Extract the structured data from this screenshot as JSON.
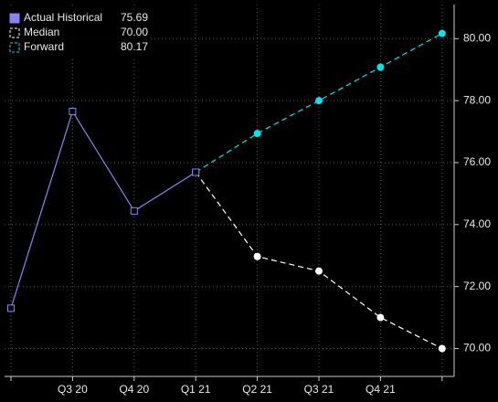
{
  "chart_data": {
    "type": "line",
    "categories": [
      null,
      "Q3 20",
      "Q4 20",
      "Q1 21",
      "Q2 21",
      "Q3 21",
      "Q4 21",
      null
    ],
    "series": [
      {
        "name": "Actual Historical",
        "legend_value": "75.69",
        "color": "#8585f5",
        "dash": false,
        "marker": "square",
        "values": [
          71.3,
          77.65,
          74.44,
          75.69,
          null,
          null,
          null,
          null
        ]
      },
      {
        "name": "Median",
        "legend_value": "70.00",
        "color": "#ffffff",
        "dash": true,
        "marker": "circle",
        "values": [
          null,
          null,
          null,
          75.69,
          72.97,
          72.5,
          71.0,
          70.0
        ]
      },
      {
        "name": "Forward",
        "legend_value": "80.17",
        "color": "#00e5ee",
        "dash": true,
        "marker": "circle",
        "values": [
          null,
          null,
          null,
          75.69,
          76.94,
          78.0,
          79.08,
          80.17
        ]
      }
    ],
    "ylim": [
      69.1,
      81.1
    ],
    "yticks": [
      {
        "value": 70,
        "label": "70.00"
      },
      {
        "value": 72,
        "label": "72.00"
      },
      {
        "value": 74,
        "label": "74.00"
      },
      {
        "value": 76,
        "label": "76.00"
      },
      {
        "value": 78,
        "label": "78.00"
      },
      {
        "value": 80,
        "label": "80.00"
      }
    ],
    "grid": true
  }
}
